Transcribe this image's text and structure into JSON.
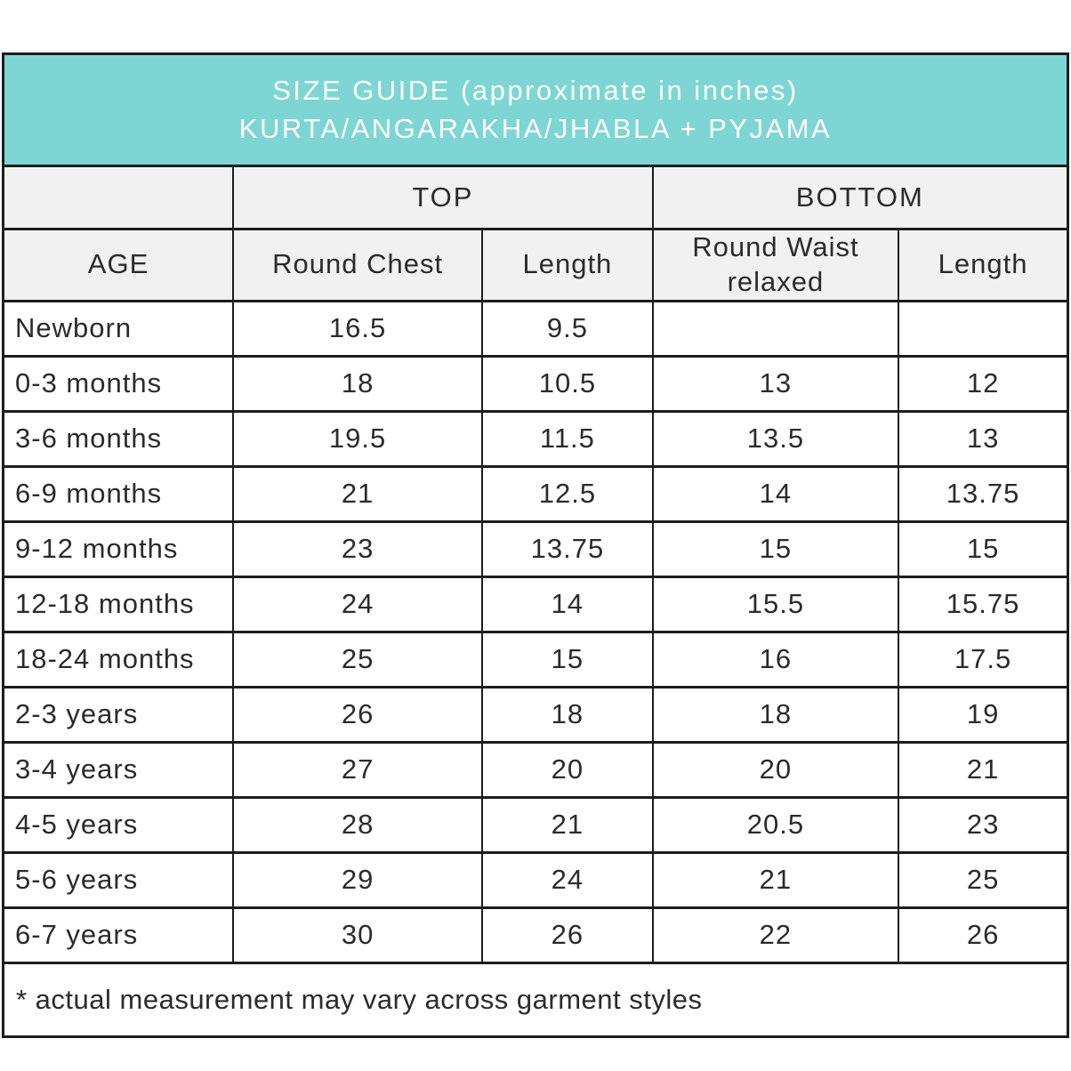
{
  "colors": {
    "banner_fill": "#7dd6d3",
    "banner_text": "#ffffff",
    "subheader_fill": "#f1f1f2",
    "grid_border": "#1d1d1d",
    "body_text": "#2b2b2b",
    "background": "#ffffff"
  },
  "chart_data": {
    "type": "table",
    "title": "SIZE GUIDE (approximate in inches)",
    "subtitle": "KURTA/ANGARAKHA/JHABLA + PYJAMA",
    "units": "inches",
    "column_groups": [
      {
        "label": "",
        "span": 1
      },
      {
        "label": "TOP",
        "span": 2
      },
      {
        "label": "BOTTOM",
        "span": 2
      }
    ],
    "columns": [
      "AGE",
      "Round Chest",
      "Length",
      "Round Waist relaxed",
      "Length"
    ],
    "rows": [
      [
        "Newborn",
        "16.5",
        "9.5",
        "",
        ""
      ],
      [
        "0-3 months",
        "18",
        "10.5",
        "13",
        "12"
      ],
      [
        "3-6 months",
        "19.5",
        "11.5",
        "13.5",
        "13"
      ],
      [
        "6-9 months",
        "21",
        "12.5",
        "14",
        "13.75"
      ],
      [
        "9-12 months",
        "23",
        "13.75",
        "15",
        "15"
      ],
      [
        "12-18 months",
        "24",
        "14",
        "15.5",
        "15.75"
      ],
      [
        "18-24 months",
        "25",
        "15",
        "16",
        "17.5"
      ],
      [
        "2-3 years",
        "26",
        "18",
        "18",
        "19"
      ],
      [
        "3-4 years",
        "27",
        "20",
        "20",
        "21"
      ],
      [
        "4-5 years",
        "28",
        "21",
        "20.5",
        "23"
      ],
      [
        "5-6 years",
        "29",
        "24",
        "21",
        "25"
      ],
      [
        "6-7 years",
        "30",
        "26",
        "22",
        "26"
      ]
    ],
    "footnote": "* actual measurement may vary across garment styles"
  }
}
